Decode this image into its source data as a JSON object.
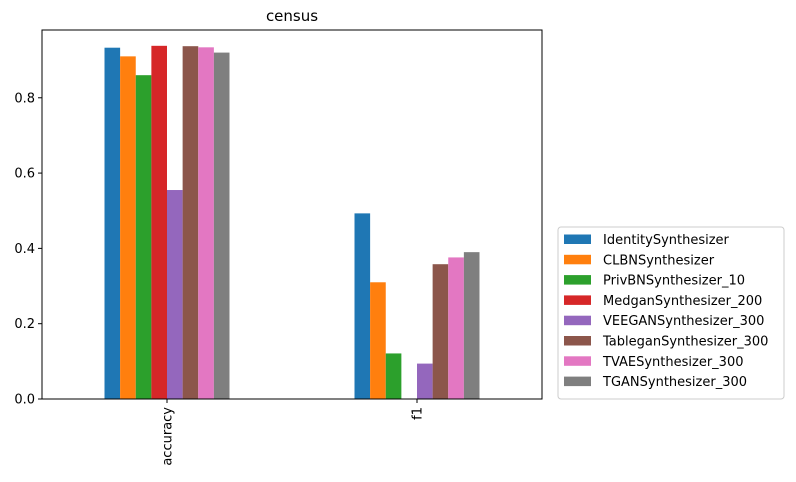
{
  "chart_data": {
    "type": "bar",
    "title": "census",
    "xlabel": "",
    "ylabel": "",
    "categories": [
      "accuracy",
      "f1"
    ],
    "ylim": [
      0,
      0.98
    ],
    "yticks": [
      "0.0",
      "0.2",
      "0.4",
      "0.6",
      "0.8"
    ],
    "grid": false,
    "legend_position": "right",
    "series": [
      {
        "name": "IdentitySynthesizer",
        "color": "#1f77b4",
        "values": [
          0.933,
          0.493
        ]
      },
      {
        "name": "CLBNSynthesizer",
        "color": "#ff7f0e",
        "values": [
          0.91,
          0.31
        ]
      },
      {
        "name": "PrivBNSynthesizer_10",
        "color": "#2ca02c",
        "values": [
          0.86,
          0.121
        ]
      },
      {
        "name": "MedganSynthesizer_200",
        "color": "#d62728",
        "values": [
          0.938,
          0.0
        ]
      },
      {
        "name": "VEEGANSynthesizer_300",
        "color": "#9467bd",
        "values": [
          0.555,
          0.094
        ]
      },
      {
        "name": "TableganSynthesizer_300",
        "color": "#8c564b",
        "values": [
          0.937,
          0.358
        ]
      },
      {
        "name": "TVAESynthesizer_300",
        "color": "#e377c2",
        "values": [
          0.934,
          0.376
        ]
      },
      {
        "name": "TGANSynthesizer_300",
        "color": "#7f7f7f",
        "values": [
          0.92,
          0.39
        ]
      }
    ]
  }
}
